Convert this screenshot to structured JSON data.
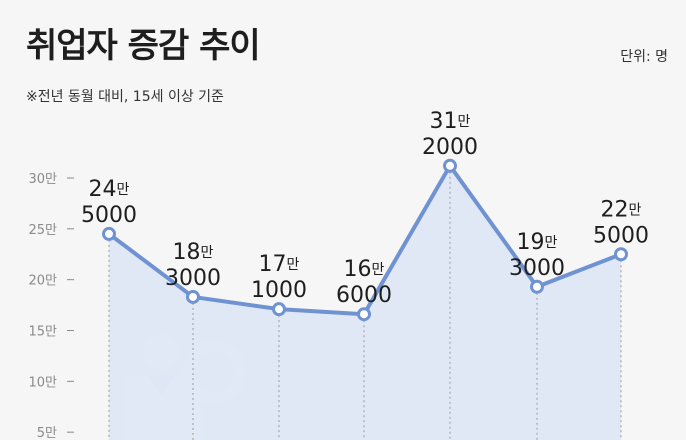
{
  "title": "취업자 증감 추이",
  "subtitle": "※전년 동월 대비, 15세 이상 기준",
  "unit_label": "단위: 명",
  "icon": "person-search-icon",
  "colors": {
    "line": "#6f93d2",
    "area": "#dde5f4",
    "background": "#f6f6f6",
    "tick": "#8a8a8a"
  },
  "chart_data": {
    "type": "line",
    "title": "취업자 증감 추이",
    "subtitle": "※전년 동월 대비, 15세 이상 기준",
    "unit": "단위: 명",
    "y_ticks": [
      "5만",
      "10만",
      "15만",
      "20만",
      "25만",
      "30만"
    ],
    "y_tick_values": [
      50000,
      100000,
      150000,
      200000,
      250000,
      300000
    ],
    "ylim": [
      0,
      300000
    ],
    "grid": false,
    "series": [
      {
        "values": [
          245000,
          183000,
          171000,
          166000,
          312000,
          193000,
          225000
        ],
        "labels": [
          {
            "man": "24",
            "unit": "만",
            "rest": "5000"
          },
          {
            "man": "18",
            "unit": "만",
            "rest": "3000"
          },
          {
            "man": "17",
            "unit": "만",
            "rest": "1000"
          },
          {
            "man": "16",
            "unit": "만",
            "rest": "6000"
          },
          {
            "man": "31",
            "unit": "만",
            "rest": "2000"
          },
          {
            "man": "19",
            "unit": "만",
            "rest": "3000"
          },
          {
            "man": "22",
            "unit": "만",
            "rest": "5000"
          }
        ]
      }
    ]
  }
}
